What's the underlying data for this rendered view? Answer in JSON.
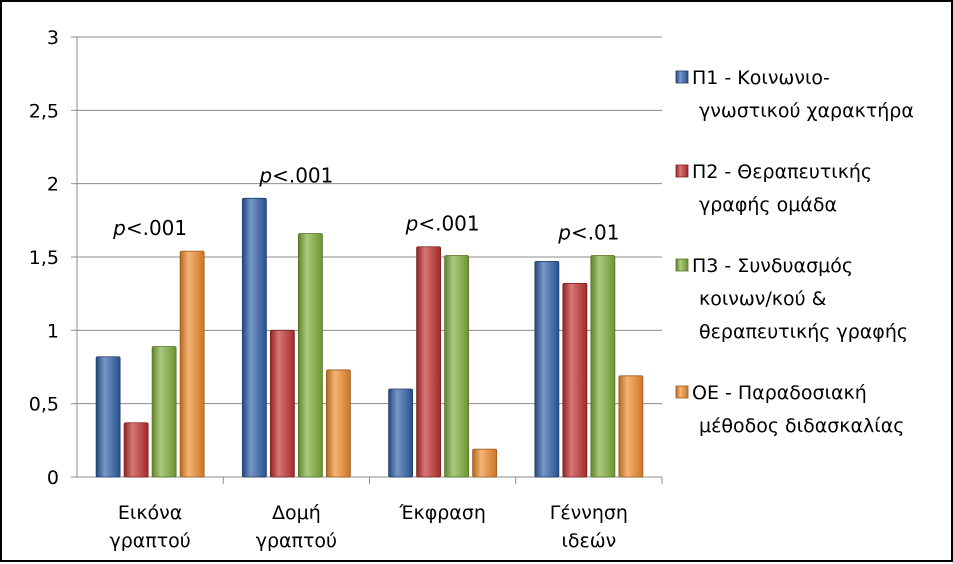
{
  "chart_data": {
    "type": "bar",
    "categories": [
      [
        "Εικόνα",
        "γραπτού"
      ],
      [
        "Δομή",
        "γραπτού"
      ],
      [
        "Έκφραση"
      ],
      [
        "Γέννηση",
        "ιδεών"
      ]
    ],
    "series": [
      {
        "name": [
          "Π1 - Κοινωνιο-",
          "γνωστικού χαρακτήρα"
        ],
        "values": [
          0.82,
          1.9,
          0.6,
          1.47
        ],
        "color": "#2E5FA8"
      },
      {
        "name": [
          "Π2 - Θεραπευτικής",
          "γραφής ομάδα"
        ],
        "values": [
          0.37,
          1.0,
          1.57,
          1.32
        ],
        "color": "#C0302E"
      },
      {
        "name": [
          "Π3 - Συνδυασμός",
          "κοινων/κού &",
          "θεραπευτικής γραφής"
        ],
        "values": [
          0.89,
          1.66,
          1.51,
          1.51
        ],
        "color": "#7FAE3A"
      },
      {
        "name": [
          "ΟΕ - Παραδοσιακή",
          "μέθοδος διδασκαλίας"
        ],
        "values": [
          1.54,
          0.73,
          0.19,
          0.69
        ],
        "color": "#F08B2A"
      }
    ],
    "annotations": [
      {
        "category_index": 0,
        "italic": "p",
        "rest": "<.001"
      },
      {
        "category_index": 1,
        "italic": "p",
        "rest": "<.001"
      },
      {
        "category_index": 2,
        "italic": "p",
        "rest": "<.001"
      },
      {
        "category_index": 3,
        "italic": "p",
        "rest": "<.01"
      }
    ],
    "yticks": [
      "0",
      "0,5",
      "1",
      "1,5",
      "2",
      "2,5",
      "3"
    ],
    "ylim": [
      0,
      3
    ],
    "grid": true,
    "legend": "right",
    "title": "",
    "xlabel": "",
    "ylabel": ""
  }
}
